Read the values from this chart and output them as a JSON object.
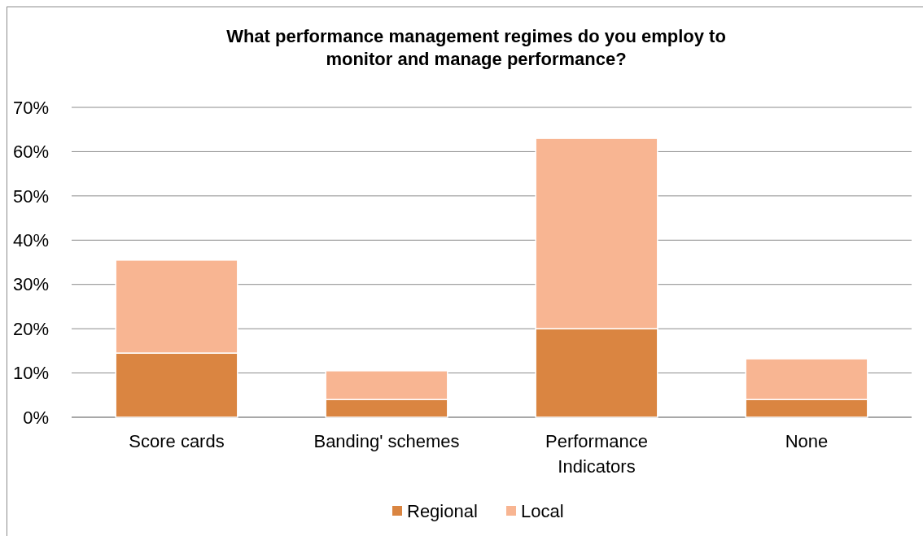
{
  "chart_data": {
    "type": "bar",
    "title": "What performance management regimes do you employ to\nmonitor and manage performance?",
    "categories": [
      "Score cards",
      "Banding' schemes",
      "Performance\nIndicators",
      "None"
    ],
    "stacked": true,
    "series": [
      {
        "name": "Regional",
        "color": "#da8541",
        "values": [
          14.5,
          4,
          20,
          4
        ]
      },
      {
        "name": "Local",
        "color": "#f8b592",
        "values": [
          21,
          6.5,
          43,
          9.2
        ]
      }
    ],
    "ylim": [
      0,
      70
    ],
    "yticks": [
      {
        "value": 0,
        "label": "0%"
      },
      {
        "value": 10,
        "label": "10%"
      },
      {
        "value": 20,
        "label": "20%"
      },
      {
        "value": 30,
        "label": "30%"
      },
      {
        "value": 40,
        "label": "40%"
      },
      {
        "value": 50,
        "label": "50%"
      },
      {
        "value": 60,
        "label": "60%"
      },
      {
        "value": 70,
        "label": "70%"
      }
    ],
    "grid": "y",
    "legend": "bottom"
  }
}
